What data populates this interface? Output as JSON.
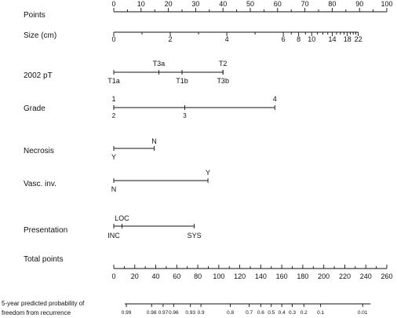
{
  "chart_data": {
    "type": "nomogram",
    "rows": {
      "points": {
        "label": "Points",
        "ticks": [
          {
            "v": 0,
            "t": "0"
          },
          {
            "v": 10,
            "t": "10"
          },
          {
            "v": 20,
            "t": "20"
          },
          {
            "v": 30,
            "t": "30"
          },
          {
            "v": 40,
            "t": "40"
          },
          {
            "v": 50,
            "t": "50"
          },
          {
            "v": 60,
            "t": "60"
          },
          {
            "v": 70,
            "t": "70"
          },
          {
            "v": 80,
            "t": "80"
          },
          {
            "v": 90,
            "t": "90"
          },
          {
            "v": 100,
            "t": "100"
          }
        ]
      },
      "size": {
        "label": "Size (cm)",
        "ticks": [
          {
            "v": 0,
            "t": "0"
          },
          {
            "v": 2,
            "t": "2"
          },
          {
            "v": 4,
            "t": "4"
          },
          {
            "v": 6,
            "t": "6"
          },
          {
            "v": 8,
            "t": "8"
          },
          {
            "v": 10,
            "t": "10"
          },
          {
            "v": 14,
            "t": "14"
          },
          {
            "v": 18,
            "t": "18"
          },
          {
            "v": 22,
            "t": "22"
          }
        ]
      },
      "pt2002": {
        "label": "2002 pT",
        "above": [
          {
            "p": 16.5,
            "t": "T3a"
          },
          {
            "p": 40,
            "t": "T2"
          }
        ],
        "below": [
          {
            "p": 0,
            "t": "T1a"
          },
          {
            "p": 25,
            "t": "T1b"
          },
          {
            "p": 40,
            "t": "T3b"
          }
        ]
      },
      "grade": {
        "label": "Grade",
        "above": [
          {
            "p": 0,
            "t": "1"
          },
          {
            "p": 59,
            "t": "4"
          }
        ],
        "below": [
          {
            "p": 0,
            "t": "2"
          },
          {
            "p": 26,
            "t": "3"
          }
        ]
      },
      "necrosis": {
        "label": "Necrosis",
        "above": [
          {
            "p": 14.8,
            "t": "N"
          }
        ],
        "below": [
          {
            "p": 0,
            "t": "Y"
          }
        ]
      },
      "vasc_inv": {
        "label": "Vasc. inv.",
        "above": [
          {
            "p": 34.5,
            "t": "Y"
          }
        ],
        "below": [
          {
            "p": 0,
            "t": "N"
          }
        ]
      },
      "presentation": {
        "label": "Presentation",
        "above": [
          {
            "p": 3,
            "t": "LOC"
          }
        ],
        "below": [
          {
            "p": 0,
            "t": "INC"
          },
          {
            "p": 29.5,
            "t": "SYS"
          }
        ]
      },
      "total_points": {
        "label": "Total points",
        "ticks": [
          {
            "v": 0,
            "t": "0"
          },
          {
            "v": 20,
            "t": "20"
          },
          {
            "v": 40,
            "t": "40"
          },
          {
            "v": 60,
            "t": "60"
          },
          {
            "v": 80,
            "t": "80"
          },
          {
            "v": 100,
            "t": "100"
          },
          {
            "v": 120,
            "t": "120"
          },
          {
            "v": 140,
            "t": "140"
          },
          {
            "v": 160,
            "t": "160"
          },
          {
            "v": 180,
            "t": "180"
          },
          {
            "v": 200,
            "t": "200"
          },
          {
            "v": 220,
            "t": "220"
          },
          {
            "v": 240,
            "t": "240"
          },
          {
            "v": 260,
            "t": "260"
          }
        ]
      },
      "probability": {
        "label_line1": "5-year predicted probability of",
        "label_line2": "freedom from recurrence",
        "ticks": [
          {
            "tp": 12,
            "t": "0.99"
          },
          {
            "tp": 36,
            "t": "0.98"
          },
          {
            "tp": 47,
            "t": "0.97"
          },
          {
            "tp": 57,
            "t": "0.96"
          },
          {
            "tp": 73,
            "t": "0.93"
          },
          {
            "tp": 83,
            "t": "0.9"
          },
          {
            "tp": 111,
            "t": "0.8"
          },
          {
            "tp": 129,
            "t": "0.7"
          },
          {
            "tp": 140,
            "t": "0.6"
          },
          {
            "tp": 150,
            "t": "0.5"
          },
          {
            "tp": 160,
            "t": "0.4"
          },
          {
            "tp": 170,
            "t": "0.3"
          },
          {
            "tp": 181,
            "t": "0.2"
          },
          {
            "tp": 197,
            "t": "0.1"
          },
          {
            "tp": 237,
            "t": "0.01"
          }
        ]
      }
    }
  }
}
